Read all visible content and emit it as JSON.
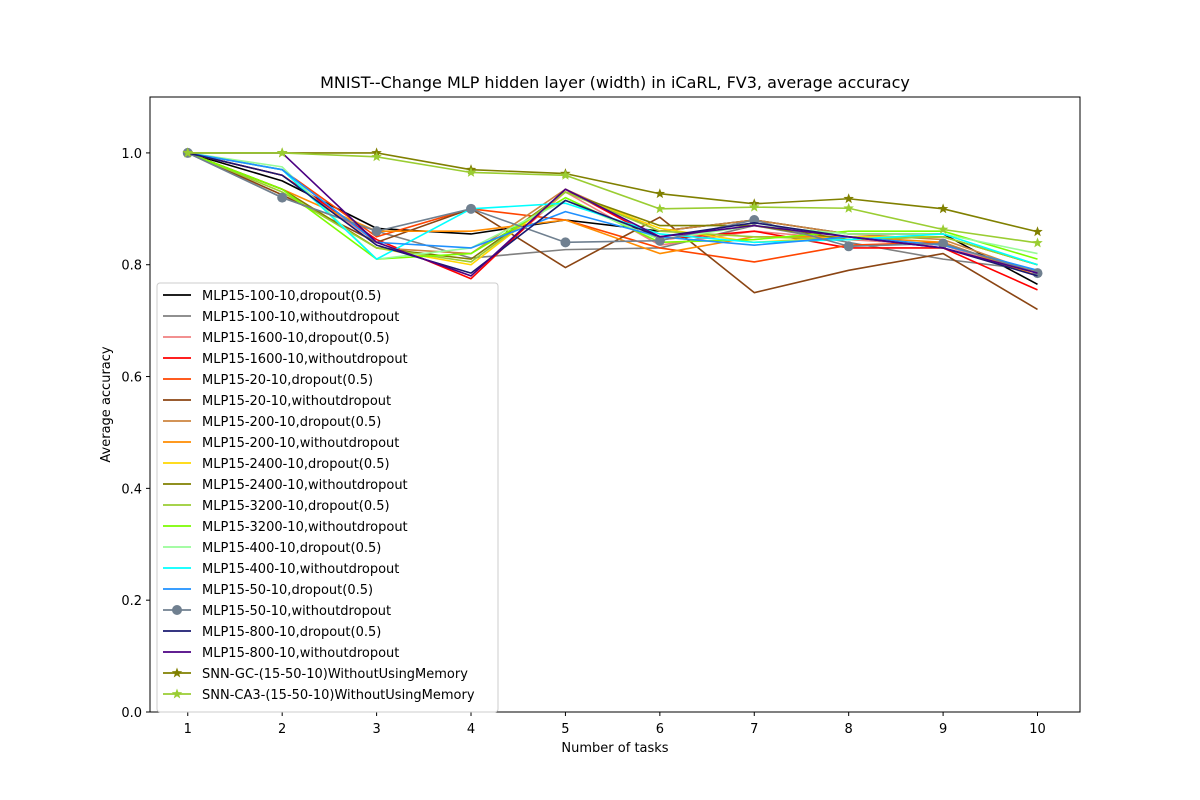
{
  "chart_data": {
    "type": "line",
    "title": "MNIST--Change MLP hidden layer (width) in iCaRL, FV3, average accuracy",
    "xlabel": "Number of tasks",
    "ylabel": "Average accuracy",
    "x": [
      1,
      2,
      3,
      4,
      5,
      6,
      7,
      8,
      9,
      10
    ],
    "xlim": [
      0.6,
      10.45
    ],
    "ylim": [
      0.0,
      1.1
    ],
    "yticks": [
      0.0,
      0.2,
      0.4,
      0.6,
      0.8,
      1.0
    ],
    "ytick_labels": [
      "0.0",
      "0.2",
      "0.4",
      "0.6",
      "0.8",
      "1.0"
    ],
    "xtick_labels": [
      "1",
      "2",
      "3",
      "4",
      "5",
      "6",
      "7",
      "8",
      "9",
      "10"
    ],
    "grid": false,
    "legend_position": "lower-left",
    "series": [
      {
        "name": "MLP15-100-10,dropout(0.5)",
        "color": "#000000",
        "marker": "none",
        "values": [
          1.0,
          0.95,
          0.865,
          0.855,
          0.88,
          0.86,
          0.88,
          0.855,
          0.855,
          0.765
        ]
      },
      {
        "name": "MLP15-100-10,withoutdropout",
        "color": "#808080",
        "marker": "none",
        "values": [
          1.0,
          0.92,
          0.86,
          0.812,
          0.827,
          0.83,
          0.87,
          0.84,
          0.81,
          0.79
        ]
      },
      {
        "name": "MLP15-1600-10,dropout(0.5)",
        "color": "#F08080",
        "marker": "none",
        "values": [
          1.0,
          0.96,
          0.84,
          0.78,
          0.93,
          0.835,
          0.86,
          0.845,
          0.835,
          0.78
        ]
      },
      {
        "name": "MLP15-1600-10,withoutdropout",
        "color": "#FF0000",
        "marker": "none",
        "values": [
          1.0,
          0.96,
          0.845,
          0.775,
          0.935,
          0.845,
          0.86,
          0.83,
          0.83,
          0.755
        ]
      },
      {
        "name": "MLP15-20-10,dropout(0.5)",
        "color": "#FF4500",
        "marker": "none",
        "values": [
          1.0,
          0.97,
          0.85,
          0.9,
          0.88,
          0.83,
          0.805,
          0.835,
          0.84,
          0.78
        ]
      },
      {
        "name": "MLP15-20-10,withoutdropout",
        "color": "#8B4513",
        "marker": "none",
        "values": [
          1.0,
          0.925,
          0.84,
          0.9,
          0.795,
          0.885,
          0.75,
          0.79,
          0.82,
          0.72
        ]
      },
      {
        "name": "MLP15-200-10,dropout(0.5)",
        "color": "#CD853F",
        "marker": "none",
        "values": [
          1.0,
          0.935,
          0.83,
          0.82,
          0.935,
          0.86,
          0.88,
          0.855,
          0.845,
          0.785
        ]
      },
      {
        "name": "MLP15-200-10,withoutdropout",
        "color": "#FF8C00",
        "marker": "none",
        "values": [
          1.0,
          0.935,
          0.86,
          0.86,
          0.88,
          0.82,
          0.85,
          0.85,
          0.84,
          0.78
        ]
      },
      {
        "name": "MLP15-2400-10,dropout(0.5)",
        "color": "#FFD700",
        "marker": "none",
        "values": [
          1.0,
          0.935,
          0.83,
          0.8,
          0.93,
          0.865,
          0.84,
          0.85,
          0.85,
          0.8
        ]
      },
      {
        "name": "MLP15-2400-10,withoutdropout",
        "color": "#808000",
        "marker": "none",
        "values": [
          1.0,
          0.935,
          0.83,
          0.81,
          0.93,
          0.87,
          0.87,
          0.845,
          0.85,
          0.8
        ]
      },
      {
        "name": "MLP15-3200-10,dropout(0.5)",
        "color": "#9ACD32",
        "marker": "none",
        "values": [
          1.0,
          0.93,
          0.83,
          0.805,
          0.93,
          0.86,
          0.85,
          0.845,
          0.85,
          0.8
        ]
      },
      {
        "name": "MLP15-3200-10,withoutdropout",
        "color": "#7CFC00",
        "marker": "none",
        "values": [
          1.0,
          0.935,
          0.81,
          0.82,
          0.92,
          0.84,
          0.845,
          0.86,
          0.86,
          0.81
        ]
      },
      {
        "name": "MLP15-400-10,dropout(0.5)",
        "color": "#98FB98",
        "marker": "none",
        "values": [
          1.0,
          0.975,
          0.81,
          0.83,
          0.915,
          0.845,
          0.87,
          0.855,
          0.855,
          0.82
        ]
      },
      {
        "name": "MLP15-400-10,withoutdropout",
        "color": "#00FFFF",
        "marker": "none",
        "values": [
          1.0,
          0.97,
          0.81,
          0.9,
          0.91,
          0.855,
          0.84,
          0.845,
          0.855,
          0.8
        ]
      },
      {
        "name": "MLP15-50-10,dropout(0.5)",
        "color": "#1E90FF",
        "marker": "none",
        "values": [
          1.0,
          0.97,
          0.84,
          0.83,
          0.895,
          0.85,
          0.835,
          0.85,
          0.835,
          0.79
        ]
      },
      {
        "name": "MLP15-50-10,withoutdropout",
        "color": "#708090",
        "marker": "circle",
        "values": [
          1.0,
          0.92,
          0.86,
          0.9,
          0.84,
          0.843,
          0.88,
          0.833,
          0.838,
          0.785
        ]
      },
      {
        "name": "MLP15-800-10,dropout(0.5)",
        "color": "#191970",
        "marker": "none",
        "values": [
          1.0,
          0.96,
          0.835,
          0.785,
          0.915,
          0.85,
          0.875,
          0.85,
          0.83,
          0.78
        ]
      },
      {
        "name": "MLP15-800-10,withoutdropout",
        "color": "#4B0082",
        "marker": "none",
        "values": [
          1.0,
          1.0,
          0.84,
          0.78,
          0.935,
          0.85,
          0.87,
          0.85,
          0.83,
          0.785
        ]
      },
      {
        "name": "SNN-GC-(15-50-10)WithoutUsingMemory",
        "color": "#808000",
        "marker": "star",
        "values": [
          1.0,
          1.0,
          1.0,
          0.97,
          0.963,
          0.927,
          0.909,
          0.918,
          0.9,
          0.859
        ]
      },
      {
        "name": "SNN-CA3-(15-50-10)WithoutUsingMemory",
        "color": "#9ACD32",
        "marker": "star",
        "values": [
          1.0,
          1.0,
          0.993,
          0.965,
          0.96,
          0.9,
          0.903,
          0.901,
          0.863,
          0.839
        ]
      }
    ]
  }
}
